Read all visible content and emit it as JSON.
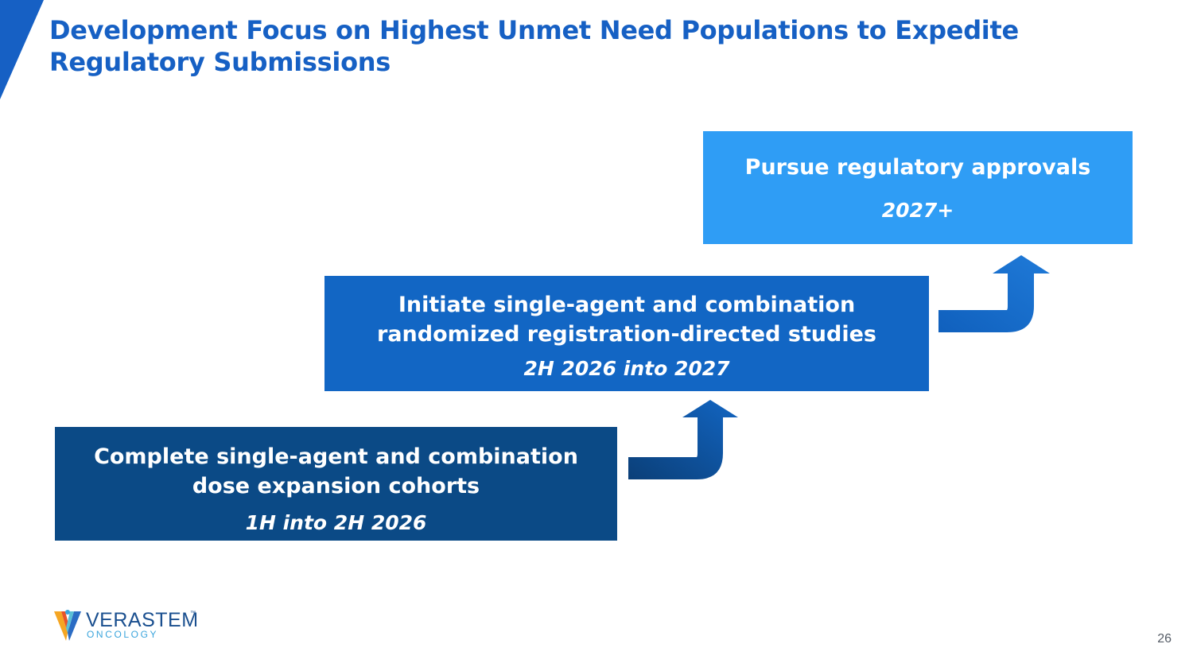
{
  "slide": {
    "title": "Development Focus on Highest Unmet Need Populations to Expedite Regulatory Submissions",
    "page_number": "26",
    "accent_color": "#1660c4"
  },
  "steps": [
    {
      "label": "Complete single-agent and combination\ndose expansion cohorts",
      "timing": "1H into 2H 2026",
      "color": "#0b4a86"
    },
    {
      "label": "Initiate single-agent and combination\nrandomized registration-directed studies",
      "timing": "2H 2026 into 2027",
      "color": "#1266c4"
    },
    {
      "label": "Pursue regulatory approvals",
      "timing": "2027+",
      "color": "#2f9df5"
    }
  ],
  "arrows": [
    {
      "icon": "turn-up-arrow-icon",
      "color": "#0b4a86"
    },
    {
      "icon": "turn-up-arrow-icon",
      "color": "#1266c4"
    }
  ],
  "logo": {
    "name": "VERASTEM",
    "trademark": "™",
    "subtitle": "ONCOLOGY",
    "icon": "verastem-v-logo-icon"
  }
}
